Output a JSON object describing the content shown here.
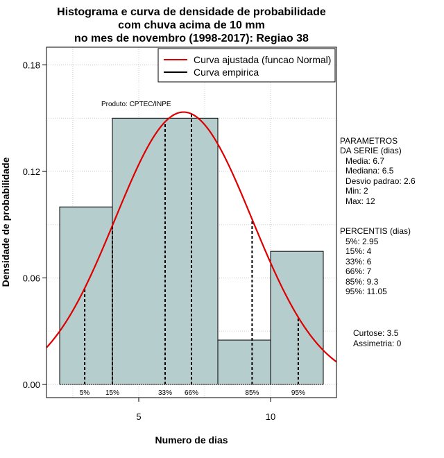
{
  "chart_data": {
    "type": "bar",
    "title_lines": [
      "Histograma e curva de densidade de probabilidade",
      "com chuva acima de 10 mm",
      "no mes de novembro (1998-2017): Regiao 38"
    ],
    "xlabel": "Numero de dias",
    "ylabel": "Densidade de probabilidade",
    "xlim": [
      1.5,
      12.5
    ],
    "ylim": [
      0,
      0.19
    ],
    "xticks": [
      5,
      10
    ],
    "yticks": [
      0.0,
      0.06,
      0.12,
      0.18
    ],
    "ytick_labels": [
      "0.00",
      "0.06",
      "0.12",
      "0.18"
    ],
    "grid": true,
    "bins": [
      {
        "x0": 2,
        "x1": 4,
        "density": 0.1
      },
      {
        "x0": 4,
        "x1": 8,
        "density": 0.15
      },
      {
        "x0": 8,
        "x1": 10,
        "density": 0.025
      },
      {
        "x0": 10,
        "x1": 12,
        "density": 0.075
      }
    ],
    "bar_color": "#b5cdcd",
    "normal_fit": {
      "mean": 6.7,
      "sd": 2.6,
      "color": "#dd0000"
    },
    "percentile_lines": [
      {
        "label": "5%",
        "x": 2.95
      },
      {
        "label": "15%",
        "x": 4
      },
      {
        "label": "33%",
        "x": 6
      },
      {
        "label": "66%",
        "x": 7
      },
      {
        "label": "85%",
        "x": 9.3
      },
      {
        "label": "95%",
        "x": 11.05
      }
    ],
    "legend": {
      "position": "top-right",
      "items": [
        {
          "label": "Curva ajustada (funcao Normal)",
          "color": "#dd0000"
        },
        {
          "label": "Curva empirica",
          "color": "#000000"
        }
      ]
    },
    "annotation": "Produto: CPTEC/INPE"
  },
  "sidebar": {
    "params_title": [
      "PARAMETROS",
      "DA SERIE (dias)"
    ],
    "params": [
      "Media: 6.7",
      "Mediana: 6.5",
      "Desvio padrao: 2.6",
      "Min: 2",
      "Max: 12"
    ],
    "percentis_title": "PERCENTIS (dias)",
    "percentis": [
      "5%: 2.95",
      "15%: 4",
      "33%: 6",
      "66%: 7",
      "85%: 9.3",
      "95%: 11.05"
    ],
    "stats": [
      "Curtose: 3.5",
      "Assimetria: 0"
    ]
  }
}
